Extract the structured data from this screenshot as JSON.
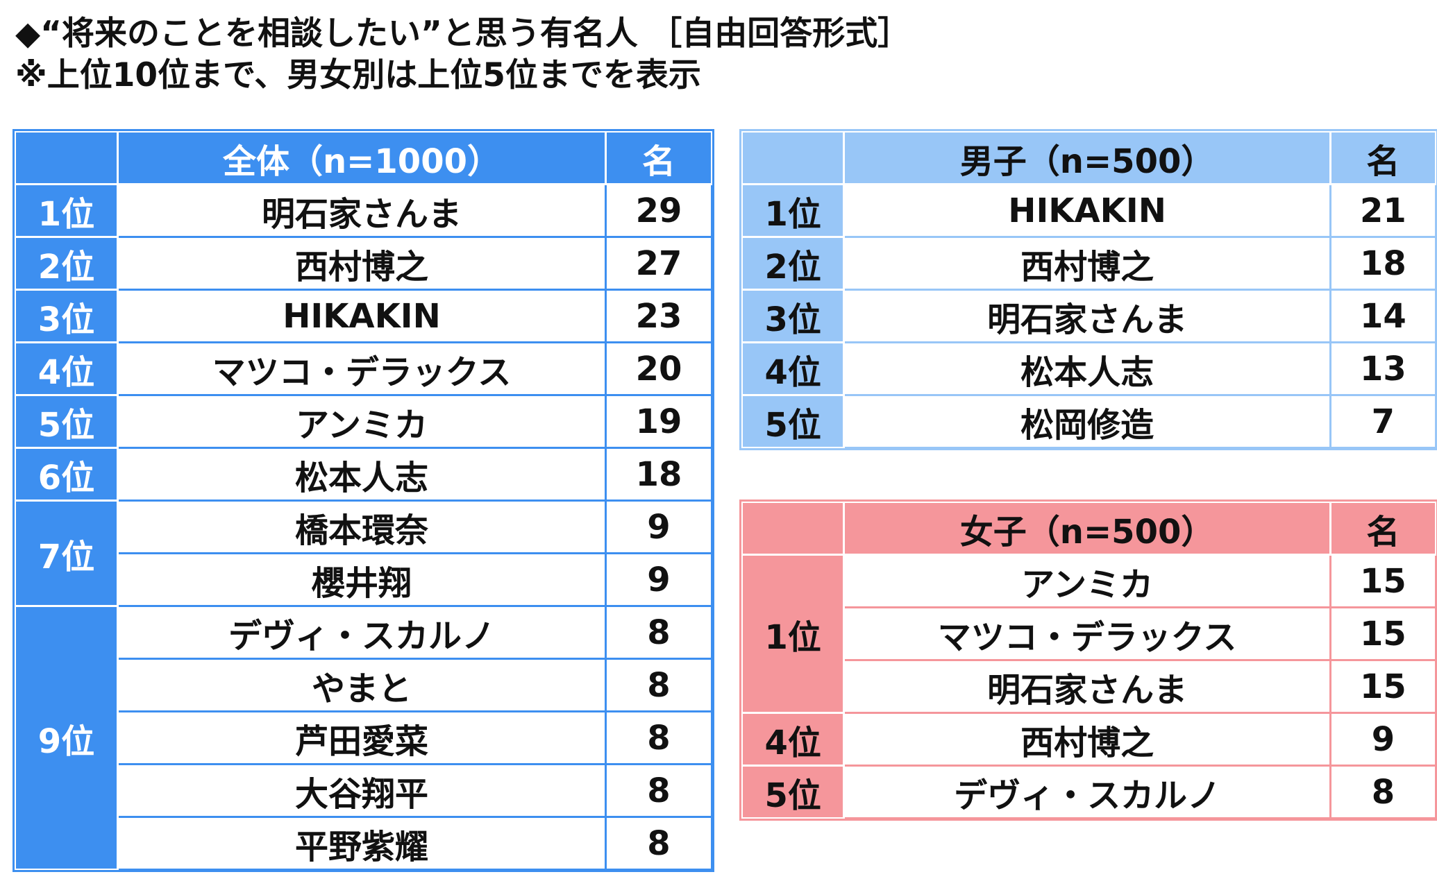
{
  "title_line1": "◆“将来のことを相談したい”と思う有名人 ［自由回答形式］",
  "title_line2": "※上位10位まで、男女別は上位5位までを表示",
  "colors": {
    "total": "#3d8ff0",
    "male": "#98c6f7",
    "female": "#f5969b"
  },
  "total": {
    "header": "全体（n=1000）",
    "unit": "名",
    "ranks": [
      {
        "rank": "1位",
        "rows": [
          {
            "name": "明石家さんま",
            "count": "29"
          }
        ]
      },
      {
        "rank": "2位",
        "rows": [
          {
            "name": "西村博之",
            "count": "27"
          }
        ]
      },
      {
        "rank": "3位",
        "rows": [
          {
            "name": "HIKAKIN",
            "count": "23"
          }
        ]
      },
      {
        "rank": "4位",
        "rows": [
          {
            "name": "マツコ・デラックス",
            "count": "20"
          }
        ]
      },
      {
        "rank": "5位",
        "rows": [
          {
            "name": "アンミカ",
            "count": "19"
          }
        ]
      },
      {
        "rank": "6位",
        "rows": [
          {
            "name": "松本人志",
            "count": "18"
          }
        ]
      },
      {
        "rank": "7位",
        "rows": [
          {
            "name": "橋本環奈",
            "count": "9"
          },
          {
            "name": "櫻井翔",
            "count": "9"
          }
        ]
      },
      {
        "rank": "9位",
        "rows": [
          {
            "name": "デヴィ・スカルノ",
            "count": "8"
          },
          {
            "name": "やまと",
            "count": "8"
          },
          {
            "name": "芦田愛菜",
            "count": "8"
          },
          {
            "name": "大谷翔平",
            "count": "8"
          },
          {
            "name": "平野紫耀",
            "count": "8"
          }
        ]
      }
    ]
  },
  "male": {
    "header": "男子（n=500）",
    "unit": "名",
    "ranks": [
      {
        "rank": "1位",
        "rows": [
          {
            "name": "HIKAKIN",
            "count": "21"
          }
        ]
      },
      {
        "rank": "2位",
        "rows": [
          {
            "name": "西村博之",
            "count": "18"
          }
        ]
      },
      {
        "rank": "3位",
        "rows": [
          {
            "name": "明石家さんま",
            "count": "14"
          }
        ]
      },
      {
        "rank": "4位",
        "rows": [
          {
            "name": "松本人志",
            "count": "13"
          }
        ]
      },
      {
        "rank": "5位",
        "rows": [
          {
            "name": "松岡修造",
            "count": "7"
          }
        ]
      }
    ]
  },
  "female": {
    "header": "女子（n=500）",
    "unit": "名",
    "ranks": [
      {
        "rank": "1位",
        "rows": [
          {
            "name": "アンミカ",
            "count": "15"
          },
          {
            "name": "マツコ・デラックス",
            "count": "15"
          },
          {
            "name": "明石家さんま",
            "count": "15"
          }
        ]
      },
      {
        "rank": "4位",
        "rows": [
          {
            "name": "西村博之",
            "count": "9"
          }
        ]
      },
      {
        "rank": "5位",
        "rows": [
          {
            "name": "デヴィ・スカルノ",
            "count": "8"
          }
        ]
      }
    ]
  }
}
